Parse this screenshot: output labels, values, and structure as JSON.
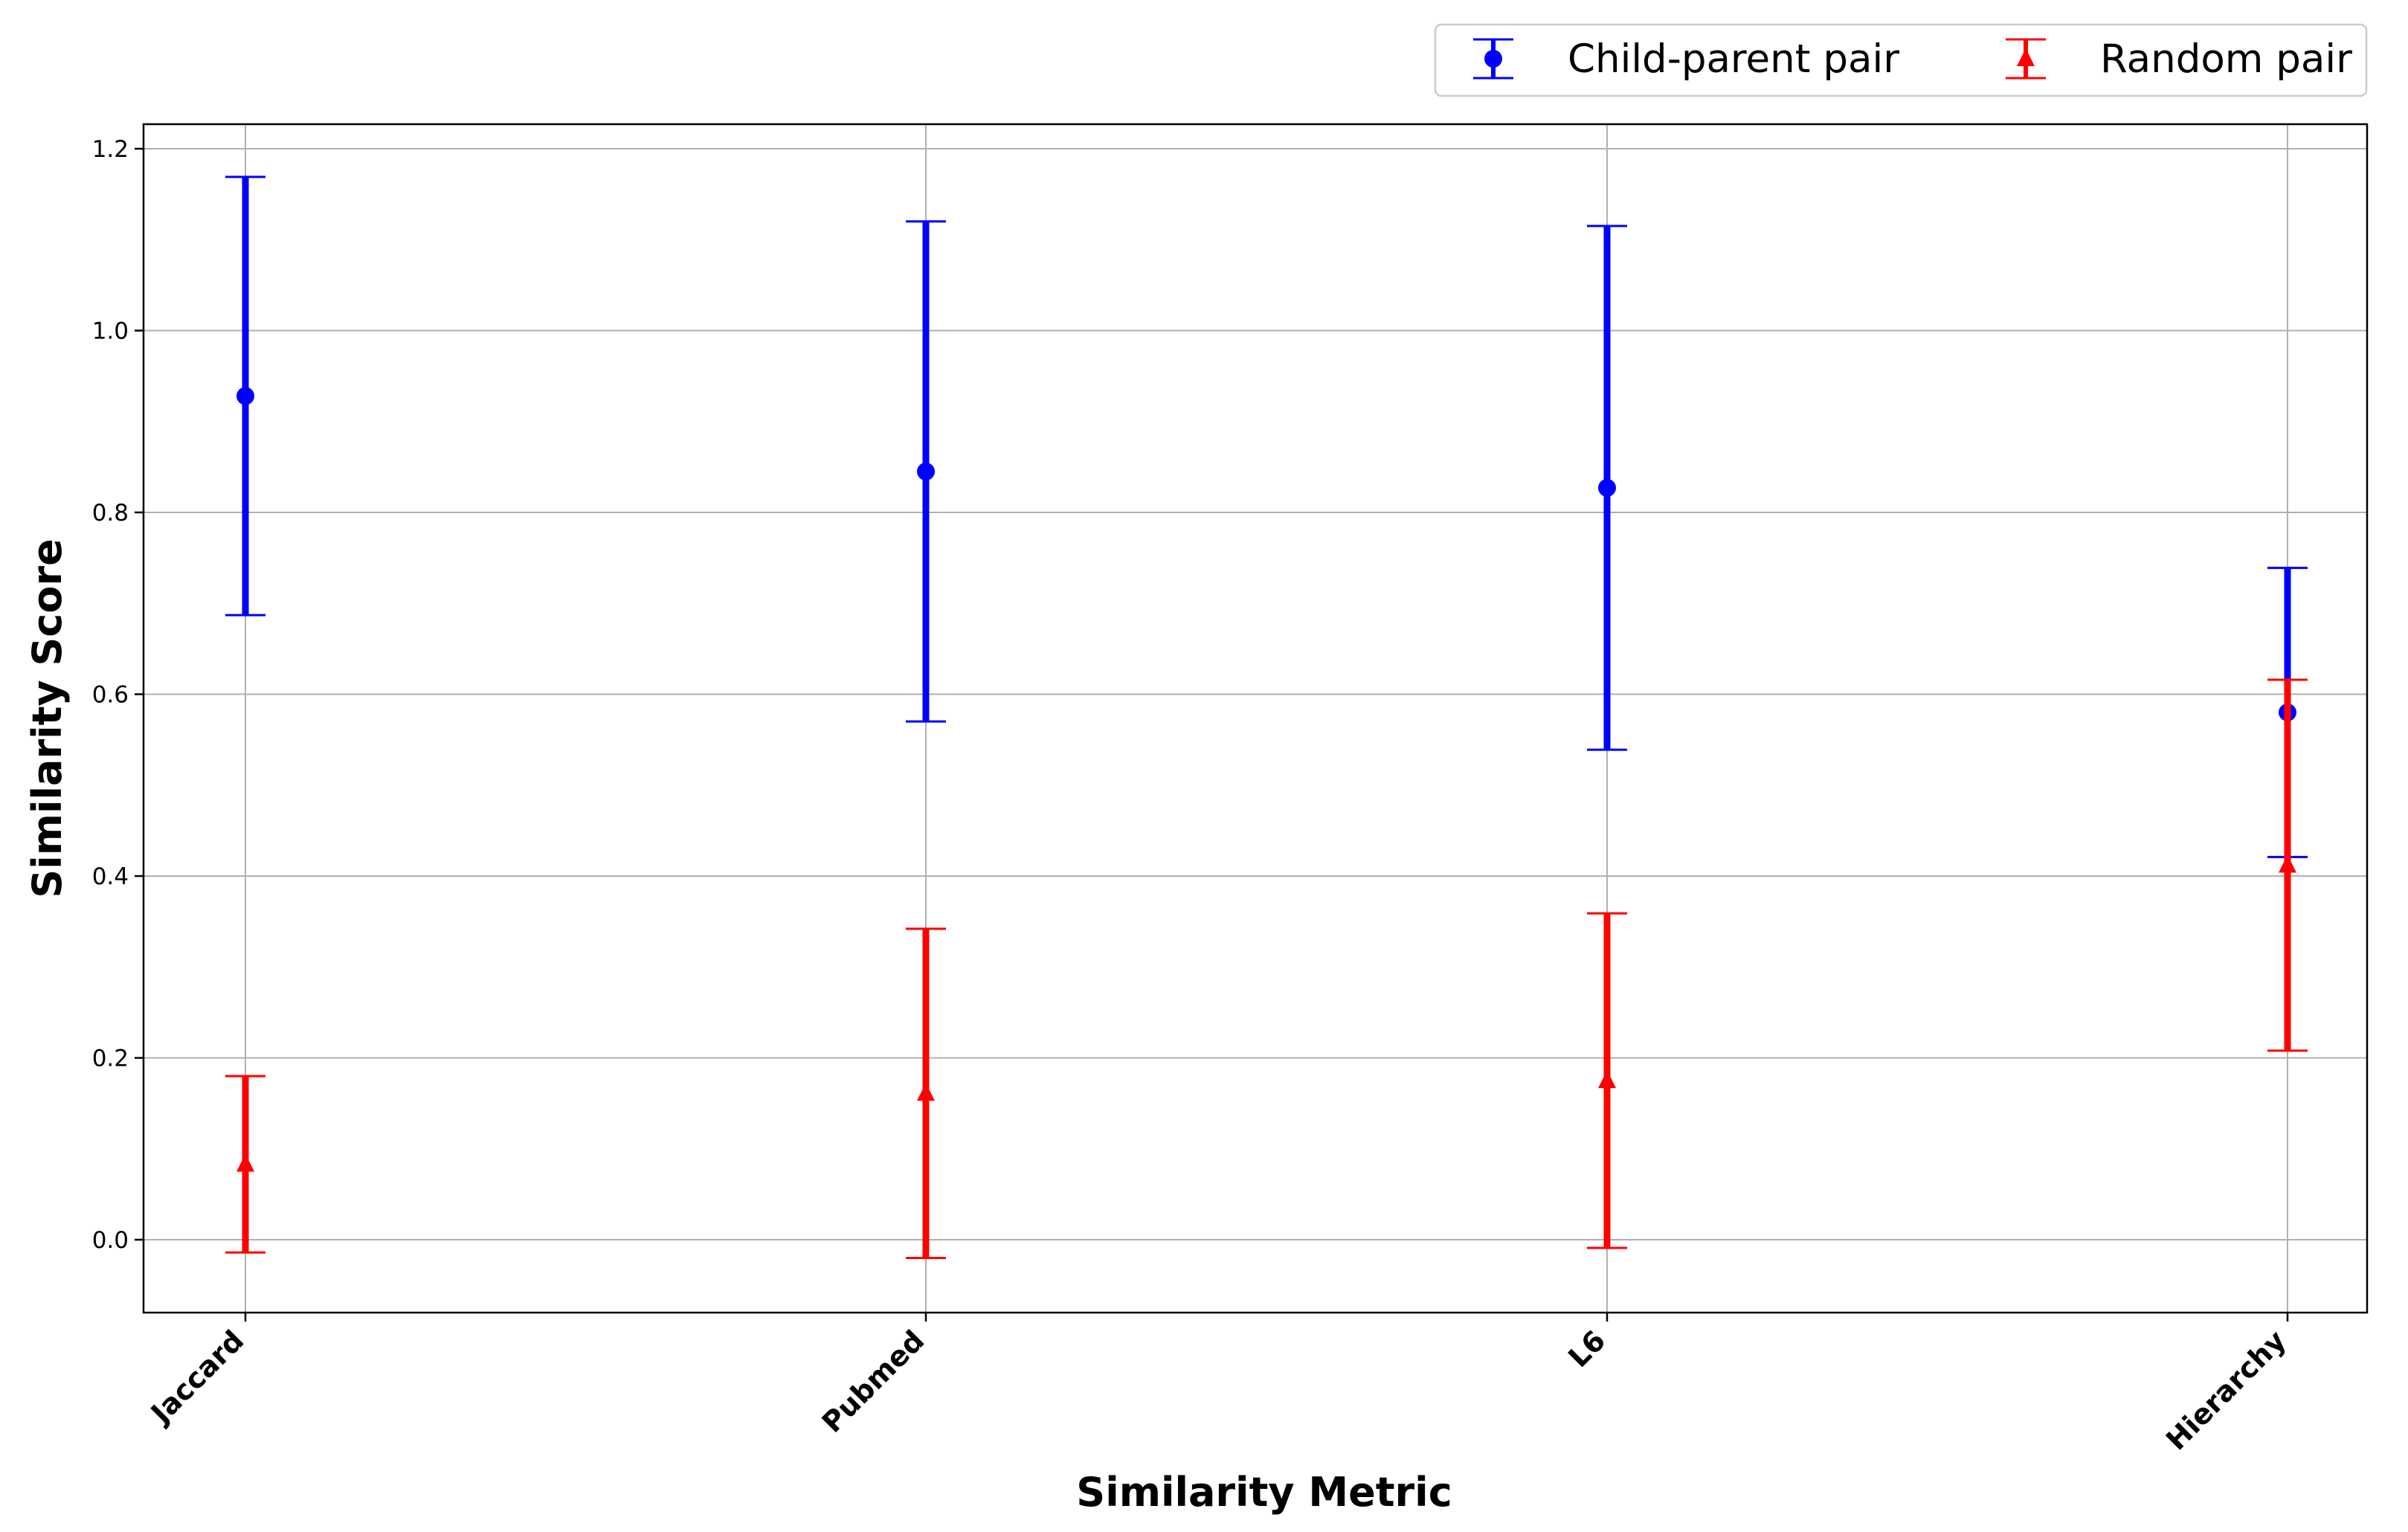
{
  "chart_data": {
    "type": "errorbar",
    "xlabel": "Similarity Metric",
    "ylabel": "Similarity Score",
    "categories": [
      "Jaccard",
      "Pubmed",
      "L6",
      "Hierarchy"
    ],
    "ylim": [
      -0.08,
      1.225
    ],
    "yticks": [
      0.0,
      0.2,
      0.4,
      0.6,
      0.8,
      1.0,
      1.2
    ],
    "ytick_labels": [
      "0.0",
      "0.2",
      "0.4",
      "0.6",
      "0.8",
      "1.0",
      "1.2"
    ],
    "grid": true,
    "legend_position": "top-right, outside plot",
    "series": [
      {
        "name": "Child-parent pair",
        "color": "#0000ff",
        "marker": "circle",
        "means": [
          0.928,
          0.845,
          0.827,
          0.58
        ],
        "errors": [
          0.241,
          0.275,
          0.288,
          0.159
        ]
      },
      {
        "name": "Random pair",
        "color": "#ff0000",
        "marker": "triangle-up",
        "means": [
          0.083,
          0.161,
          0.175,
          0.412
        ],
        "errors": [
          0.097,
          0.181,
          0.184,
          0.204
        ]
      }
    ]
  }
}
